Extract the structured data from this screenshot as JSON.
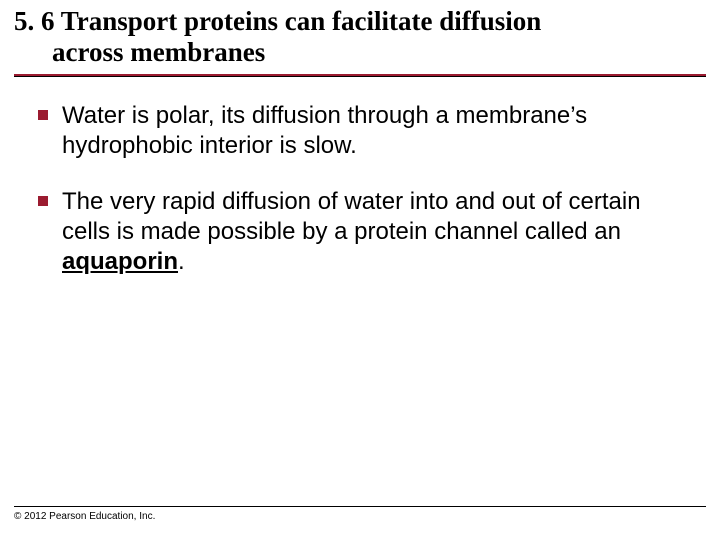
{
  "colors": {
    "accent": "#9b1b30",
    "text": "#000000",
    "background": "#ffffff"
  },
  "typography": {
    "title_font": "Times New Roman",
    "title_size_pt": 27,
    "title_weight": "bold",
    "body_font": "Arial",
    "body_size_pt": 24,
    "footer_size_pt": 10
  },
  "title": {
    "line1": "5. 6 Transport proteins can facilitate diffusion",
    "line2": "across membranes"
  },
  "bullets": [
    {
      "text": "Water is polar, its diffusion through a membrane’s hydrophobic interior is slow."
    },
    {
      "text_before": "The very rapid diffusion of water into and out of certain cells is made possible by a protein channel called an ",
      "emphasis": "aquaporin",
      "text_after": "."
    }
  ],
  "footer": {
    "copyright": "© 2012 Pearson Education, Inc."
  }
}
